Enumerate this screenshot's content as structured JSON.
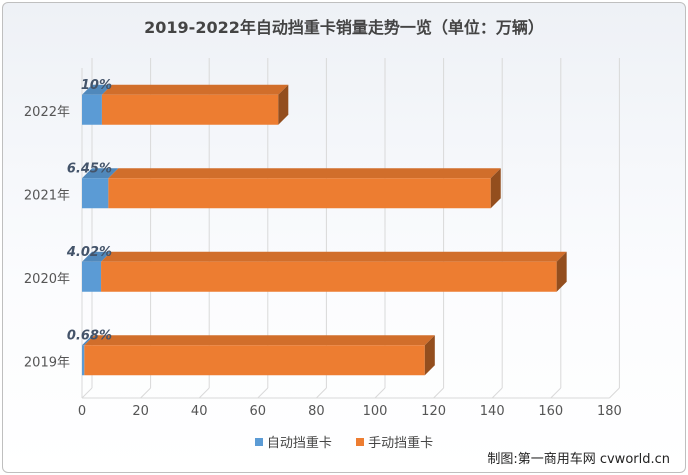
{
  "chart_data": {
    "type": "bar",
    "orientation": "horizontal",
    "stacked": true,
    "style": "3d",
    "title": "2019-2022年自动挡重卡销量走势一览（单位：万辆）",
    "categories": [
      "2019年",
      "2020年",
      "2021年",
      "2022年"
    ],
    "series": [
      {
        "name": "自动挡重卡",
        "values": [
          0.8,
          6.5,
          9.0,
          6.8
        ],
        "color": "#5b9bd5"
      },
      {
        "name": "手动挡重卡",
        "values": [
          116.2,
          155.5,
          130.5,
          60.2
        ],
        "color": "#ed7d31"
      }
    ],
    "data_labels": [
      "0.68%",
      "4.02%",
      "6.45%",
      "10%"
    ],
    "x_ticks": [
      "0",
      "20",
      "40",
      "60",
      "80",
      "100",
      "120",
      "140",
      "160",
      "180"
    ],
    "xlim": [
      0,
      180
    ],
    "grid": true,
    "legend": "bottom"
  },
  "watermark": "制图:第一商用车网 cvworld.cn"
}
